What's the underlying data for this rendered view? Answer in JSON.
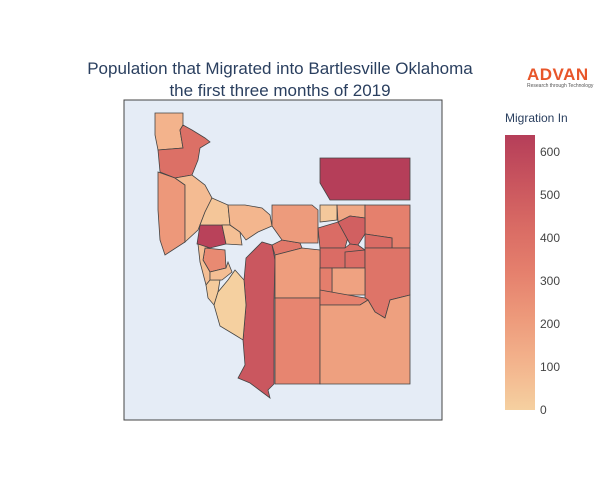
{
  "chart_data": {
    "type": "choropleth",
    "title_lines": [
      "Population that Migrated into Bartlesville Oklahoma",
      "the first three months of 2019"
    ],
    "colorbar": {
      "title": "Migration In",
      "range": [
        0,
        640
      ],
      "ticks": [
        0,
        100,
        200,
        300,
        400,
        500,
        600
      ],
      "colorscale": [
        "#f5d0a0",
        "#f3b48d",
        "#ed9a7b",
        "#e5806d",
        "#d96b64",
        "#c8545e",
        "#b53e59"
      ]
    },
    "background": "#e5ecf6",
    "border_color": "#444444",
    "regions": [
      {
        "id": "r01",
        "value": 110
      },
      {
        "id": "r02",
        "value": 400
      },
      {
        "id": "r03",
        "value": 220
      },
      {
        "id": "r04",
        "value": 80
      },
      {
        "id": "r05",
        "value": 620
      },
      {
        "id": "r06",
        "value": 40
      },
      {
        "id": "r07",
        "value": 60
      },
      {
        "id": "r08",
        "value": 100
      },
      {
        "id": "r09",
        "value": 280
      },
      {
        "id": "r10",
        "value": 70
      },
      {
        "id": "r11",
        "value": 20
      },
      {
        "id": "r12",
        "value": 70
      },
      {
        "id": "r13",
        "value": 520
      },
      {
        "id": "r14",
        "value": 360
      },
      {
        "id": "r15",
        "value": 0
      },
      {
        "id": "r16",
        "value": 640
      },
      {
        "id": "r17",
        "value": 210
      },
      {
        "id": "r18",
        "value": 30
      },
      {
        "id": "r19",
        "value": 160
      },
      {
        "id": "r20",
        "value": 320
      },
      {
        "id": "r21",
        "value": 420
      },
      {
        "id": "r22",
        "value": 480
      },
      {
        "id": "r23",
        "value": 420
      },
      {
        "id": "r24",
        "value": 420
      },
      {
        "id": "r25",
        "value": 200
      },
      {
        "id": "r26",
        "value": 420
      },
      {
        "id": "r27",
        "value": 380
      },
      {
        "id": "r28",
        "value": 180
      },
      {
        "id": "r29",
        "value": 330
      },
      {
        "id": "r30",
        "value": 300
      },
      {
        "id": "r31",
        "value": 310
      },
      {
        "id": "r32",
        "value": 190
      }
    ]
  },
  "logo": {
    "word": "ADVAN",
    "tagline": "Research through Technology",
    "color": "#e8562a"
  }
}
